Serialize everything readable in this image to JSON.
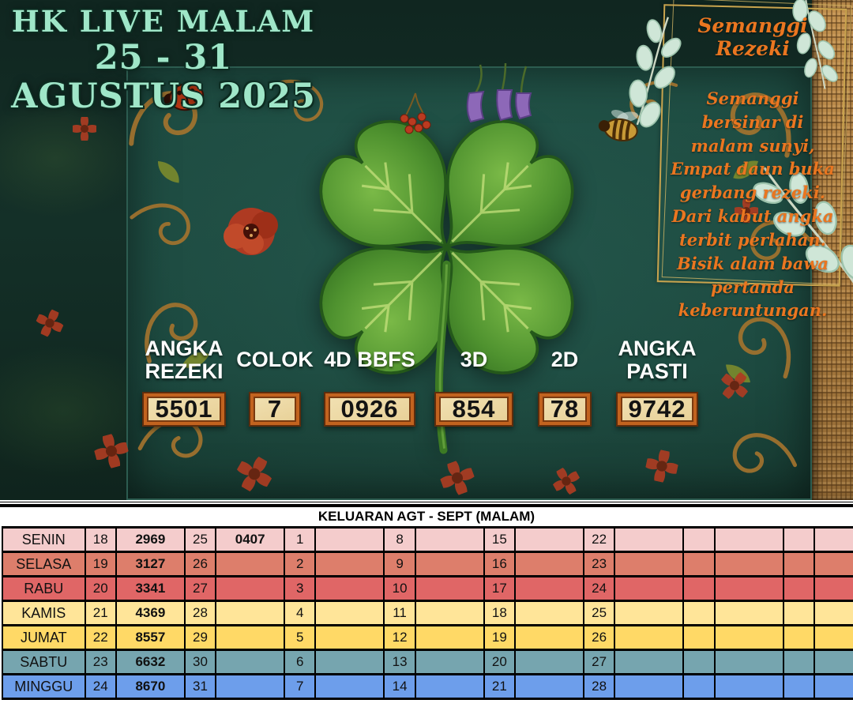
{
  "header": {
    "title": "HK LIVE MALAM",
    "date_range": "25 - 31 AGUSTUS 2025"
  },
  "poem": {
    "title": "Semanggi Rezeki",
    "lines": [
      "Semanggi bersinar di",
      "malam sunyi,",
      "Empat daun buka",
      "gerbang rezeki.",
      "Dari kabut angka",
      "terbit perlahan.",
      "Bisik alam bawa",
      "pertanda",
      "keberuntungan."
    ]
  },
  "predictions": [
    {
      "label": "ANGKA REZEKI",
      "value": "5501"
    },
    {
      "label": "COLOK",
      "value": "7"
    },
    {
      "label": "4D BBFS",
      "value": "0926"
    },
    {
      "label": "3D",
      "value": "854"
    },
    {
      "label": "2D",
      "value": "78"
    },
    {
      "label": "ANGKA PASTI",
      "value": "9742"
    }
  ],
  "colors": {
    "poster_title": "#9fe6c8",
    "poem_text": "#ea7620",
    "frame_gold": "#c9a44e",
    "pred_box_fill": "#ecd8a4",
    "pred_box_border": "#c2631f"
  },
  "table": {
    "title": "KELUARAN AGT - SEPT (MALAM)",
    "rows": [
      {
        "day": "SENIN",
        "color": "#f4cccc",
        "cells": [
          "18",
          "2969",
          "25",
          "0407",
          "1",
          "",
          "8",
          "",
          "15",
          "",
          "22",
          "",
          "",
          "",
          "",
          ""
        ]
      },
      {
        "day": "SELASA",
        "color": "#dd7e6b",
        "cells": [
          "19",
          "3127",
          "26",
          "",
          "2",
          "",
          "9",
          "",
          "16",
          "",
          "23",
          "",
          "",
          "",
          "",
          ""
        ]
      },
      {
        "day": "RABU",
        "color": "#e06666",
        "cells": [
          "20",
          "3341",
          "27",
          "",
          "3",
          "",
          "10",
          "",
          "17",
          "",
          "24",
          "",
          "",
          "",
          "",
          ""
        ]
      },
      {
        "day": "KAMIS",
        "color": "#ffe599",
        "cells": [
          "21",
          "4369",
          "28",
          "",
          "4",
          "",
          "11",
          "",
          "18",
          "",
          "25",
          "",
          "",
          "",
          "",
          ""
        ]
      },
      {
        "day": "JUMAT",
        "color": "#ffd966",
        "cells": [
          "22",
          "8557",
          "29",
          "",
          "5",
          "",
          "12",
          "",
          "19",
          "",
          "26",
          "",
          "",
          "",
          "",
          ""
        ]
      },
      {
        "day": "SABTU",
        "color": "#76a5af",
        "cells": [
          "23",
          "6632",
          "30",
          "",
          "6",
          "",
          "13",
          "",
          "20",
          "",
          "27",
          "",
          "",
          "",
          "",
          ""
        ]
      },
      {
        "day": "MINGGU",
        "color": "#6d9eeb",
        "cells": [
          "24",
          "8670",
          "31",
          "",
          "7",
          "",
          "14",
          "",
          "21",
          "",
          "28",
          "",
          "",
          "",
          "",
          ""
        ]
      }
    ]
  }
}
